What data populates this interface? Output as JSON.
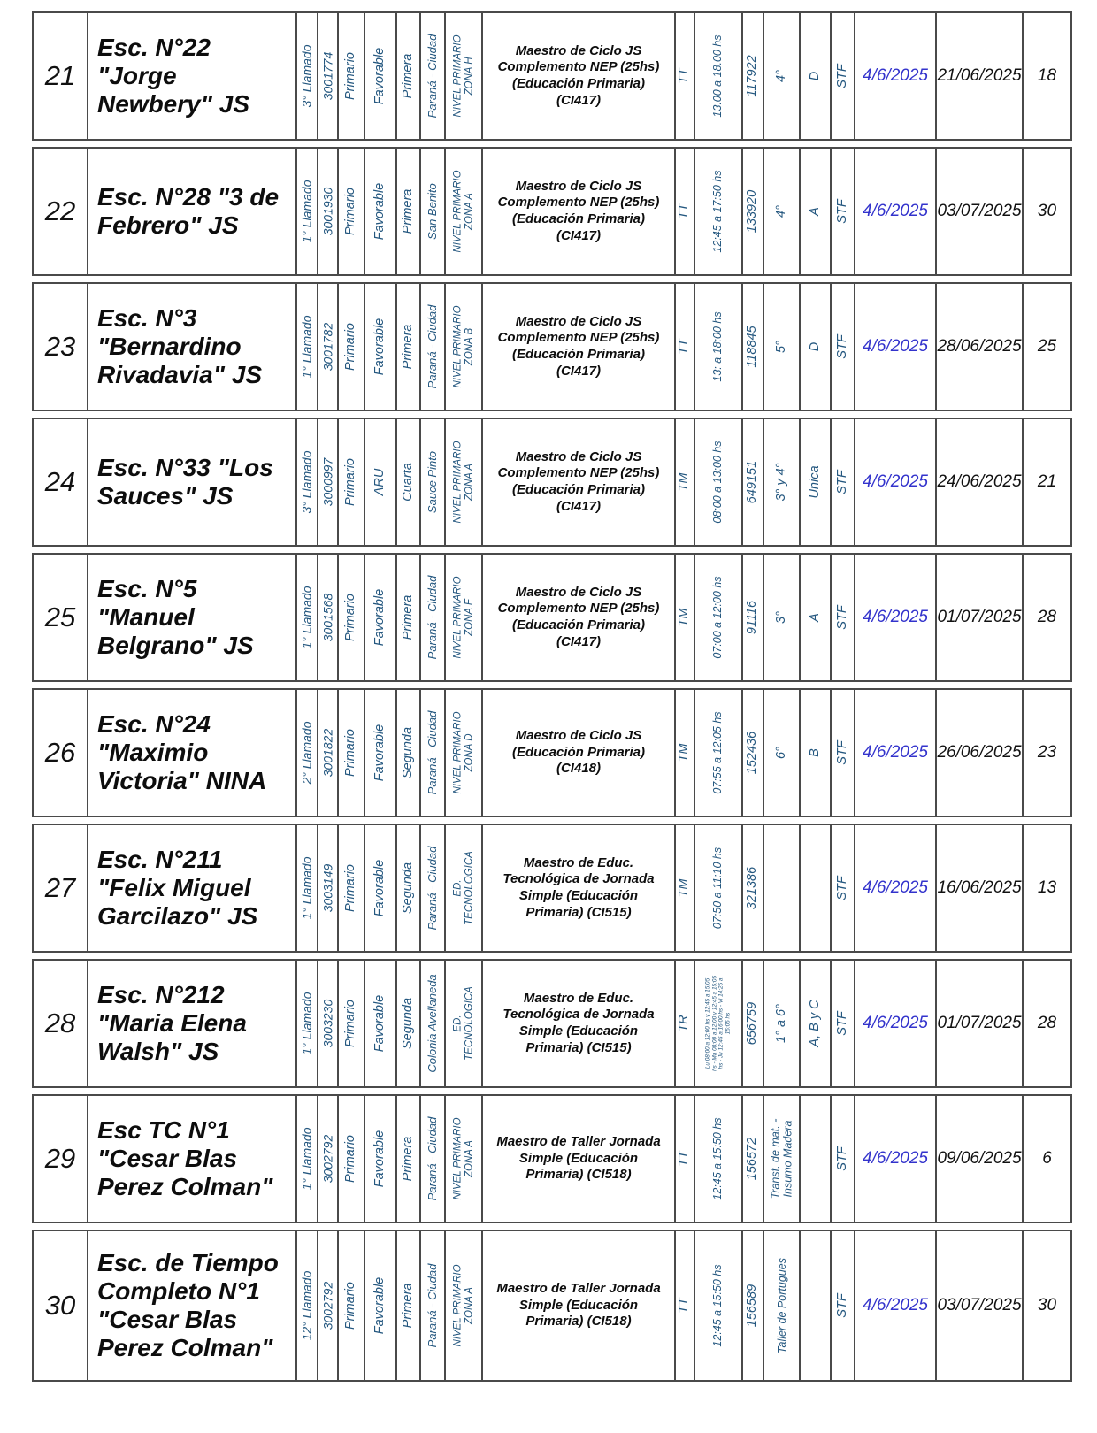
{
  "colors": {
    "rotated_text": "#24577f",
    "highlight_date": "#3333cc",
    "body_text": "#111111",
    "border": "#4a4a4a",
    "page_background": "#ffffff"
  },
  "table": {
    "rows": [
      {
        "num": "21",
        "school": "Esc. N°22 \"Jorge Newbery\" JS",
        "llamado": "3° Llamado",
        "code": "3001774",
        "level": "Primario",
        "status": "Favorable",
        "category": "Primera",
        "locality": "Paraná - Ciudad",
        "zone": "NIVEL PRIMARIO ZONA H",
        "cargo": "Maestro de Ciclo JS Complemento NEP (25hs) (Educación Primaria) (CI417)",
        "turno": "TT",
        "horario": "13.00 a 18.00 hs",
        "vacante": "117922",
        "grado": "4°",
        "division": "D",
        "stf": "STF",
        "fecha_publicacion": "4/6/2025",
        "fecha_cierre": "21/06/2025",
        "dias": "18"
      },
      {
        "num": "22",
        "school": "Esc. N°28 \"3 de Febrero\" JS",
        "llamado": "1° Llamado",
        "code": "3001930",
        "level": "Primario",
        "status": "Favorable",
        "category": "Primera",
        "locality": "San Benito",
        "zone": "NIVEL PRIMARIO ZONA A",
        "cargo": "Maestro de Ciclo JS Complemento NEP (25hs) (Educación Primaria) (CI417)",
        "turno": "TT",
        "horario": "12:45 a 17:50 hs",
        "vacante": "133920",
        "grado": "4°",
        "division": "A",
        "stf": "STF",
        "fecha_publicacion": "4/6/2025",
        "fecha_cierre": "03/07/2025",
        "dias": "30"
      },
      {
        "num": "23",
        "school": "Esc. N°3 \"Bernardino Rivadavia\" JS",
        "llamado": "1° Llamado",
        "code": "3001782",
        "level": "Primario",
        "status": "Favorable",
        "category": "Primera",
        "locality": "Paraná - Ciudad",
        "zone": "NIVEL PRIMARIO ZONA B",
        "cargo": "Maestro de Ciclo JS Complemento NEP (25hs) (Educación Primaria) (CI417)",
        "turno": "TT",
        "horario": "13: a 18:00 hs",
        "vacante": "118845",
        "grado": "5°",
        "division": "D",
        "stf": "STF",
        "fecha_publicacion": "4/6/2025",
        "fecha_cierre": "28/06/2025",
        "dias": "25"
      },
      {
        "num": "24",
        "school": "Esc. N°33 \"Los Sauces\" JS",
        "llamado": "3° Llamado",
        "code": "3000997",
        "level": "Primario",
        "status": "ARU",
        "category": "Cuarta",
        "locality": "Sauce Pinto",
        "zone": "NIVEL PRIMARIO ZONA A",
        "cargo": "Maestro de Ciclo JS Complemento NEP (25hs) (Educación Primaria) (CI417)",
        "turno": "TM",
        "horario": "08:00 a 13:00 hs",
        "vacante": "649151",
        "grado": "3° y 4°",
        "division": "Unica",
        "stf": "STF",
        "fecha_publicacion": "4/6/2025",
        "fecha_cierre": "24/06/2025",
        "dias": "21"
      },
      {
        "num": "25",
        "school": "Esc. N°5 \"Manuel Belgrano\" JS",
        "llamado": "1° Llamado",
        "code": "3001568",
        "level": "Primario",
        "status": "Favorable",
        "category": "Primera",
        "locality": "Paraná - Ciudad",
        "zone": "NIVEL PRIMARIO ZONA F",
        "cargo": "Maestro de Ciclo JS Complemento NEP (25hs) (Educación Primaria) (CI417)",
        "turno": "TM",
        "horario": "07:00 a 12:00 hs",
        "vacante": "91116",
        "grado": "3°",
        "division": "A",
        "stf": "STF",
        "fecha_publicacion": "4/6/2025",
        "fecha_cierre": "01/07/2025",
        "dias": "28"
      },
      {
        "num": "26",
        "school": "Esc. N°24 \"Maximio Victoria\" NINA",
        "llamado": "2° Llamado",
        "code": "3001822",
        "level": "Primario",
        "status": "Favorable",
        "category": "Segunda",
        "locality": "Paraná - Ciudad",
        "zone": "NIVEL PRIMARIO ZONA D",
        "cargo": "Maestro de Ciclo JS (Educación Primaria) (CI418)",
        "turno": "TM",
        "horario": "07:55 a 12:05 hs",
        "vacante": "152436",
        "grado": "6°",
        "division": "B",
        "stf": "STF",
        "fecha_publicacion": "4/6/2025",
        "fecha_cierre": "26/06/2025",
        "dias": "23"
      },
      {
        "num": "27",
        "school": "Esc. N°211 \"Felix Miguel Garcilazo\" JS",
        "llamado": "1° Llamado",
        "code": "3003149",
        "level": "Primario",
        "status": "Favorable",
        "category": "Segunda",
        "locality": "Paraná - Ciudad",
        "zone": "ED. TECNOLOGICA",
        "cargo": "Maestro de Educ. Tecnológica de Jornada Simple (Educación Primaria) (CI515)",
        "turno": "TM",
        "horario": "07:50 a 11:10 hs",
        "vacante": "321386",
        "grado": "",
        "division": "",
        "stf": "STF",
        "fecha_publicacion": "4/6/2025",
        "fecha_cierre": "16/06/2025",
        "dias": "13"
      },
      {
        "num": "28",
        "school": "Esc. N°212 \"Maria Elena Walsh\" JS",
        "llamado": "1° Llamado",
        "code": "3003230",
        "level": "Primario",
        "status": "Favorable",
        "category": "Segunda",
        "locality": "Colonia Avellaneda",
        "zone": "ED. TECNOLOGICA",
        "cargo": "Maestro de Educ. Tecnológica de Jornada Simple (Educación Primaria) (CI515)",
        "turno": "TR",
        "horario": "Lu 08:00 a 12:00 hs y 12:45 a 15:05 hs - Ma 08:00 a 12:00 y 12:45 a 15:05 hs - Ju 12:45 a 16:00 hs - Vi 14:25 a 15:05 hs",
        "vacante": "656759",
        "grado": "1° a 6°",
        "division": "A, B y C",
        "stf": "STF",
        "fecha_publicacion": "4/6/2025",
        "fecha_cierre": "01/07/2025",
        "dias": "28"
      },
      {
        "num": "29",
        "school": "Esc TC N°1 \"Cesar Blas Perez Colman\"",
        "llamado": "1° Llamado",
        "code": "3002792",
        "level": "Primario",
        "status": "Favorable",
        "category": "Primera",
        "locality": "Paraná - Ciudad",
        "zone": "NIVEL PRIMARIO ZONA A",
        "cargo": "Maestro de Taller Jornada Simple (Educación Primaria) (CI518)",
        "turno": "TT",
        "horario": "12:45 a 15:50 hs",
        "vacante": "156572",
        "grado": "Transf. de mat. - Insumo Madera",
        "division": "",
        "stf": "STF",
        "fecha_publicacion": "4/6/2025",
        "fecha_cierre": "09/06/2025",
        "dias": "6"
      },
      {
        "num": "30",
        "school": "Esc. de Tiempo Completo N°1 \"Cesar Blas Perez Colman\"",
        "llamado": "12° Llamado",
        "code": "3002792",
        "level": "Primario",
        "status": "Favorable",
        "category": "Primera",
        "locality": "Paraná - Ciudad",
        "zone": "NIVEL PRIMARIO ZONA A",
        "cargo": "Maestro de Taller Jornada Simple (Educación Primaria) (CI518)",
        "turno": "TT",
        "horario": "12:45 a 15:50 hs",
        "vacante": "156589",
        "grado": "Taller de Portugues",
        "division": "",
        "stf": "STF",
        "fecha_publicacion": "4/6/2025",
        "fecha_cierre": "03/07/2025",
        "dias": "30"
      }
    ]
  }
}
